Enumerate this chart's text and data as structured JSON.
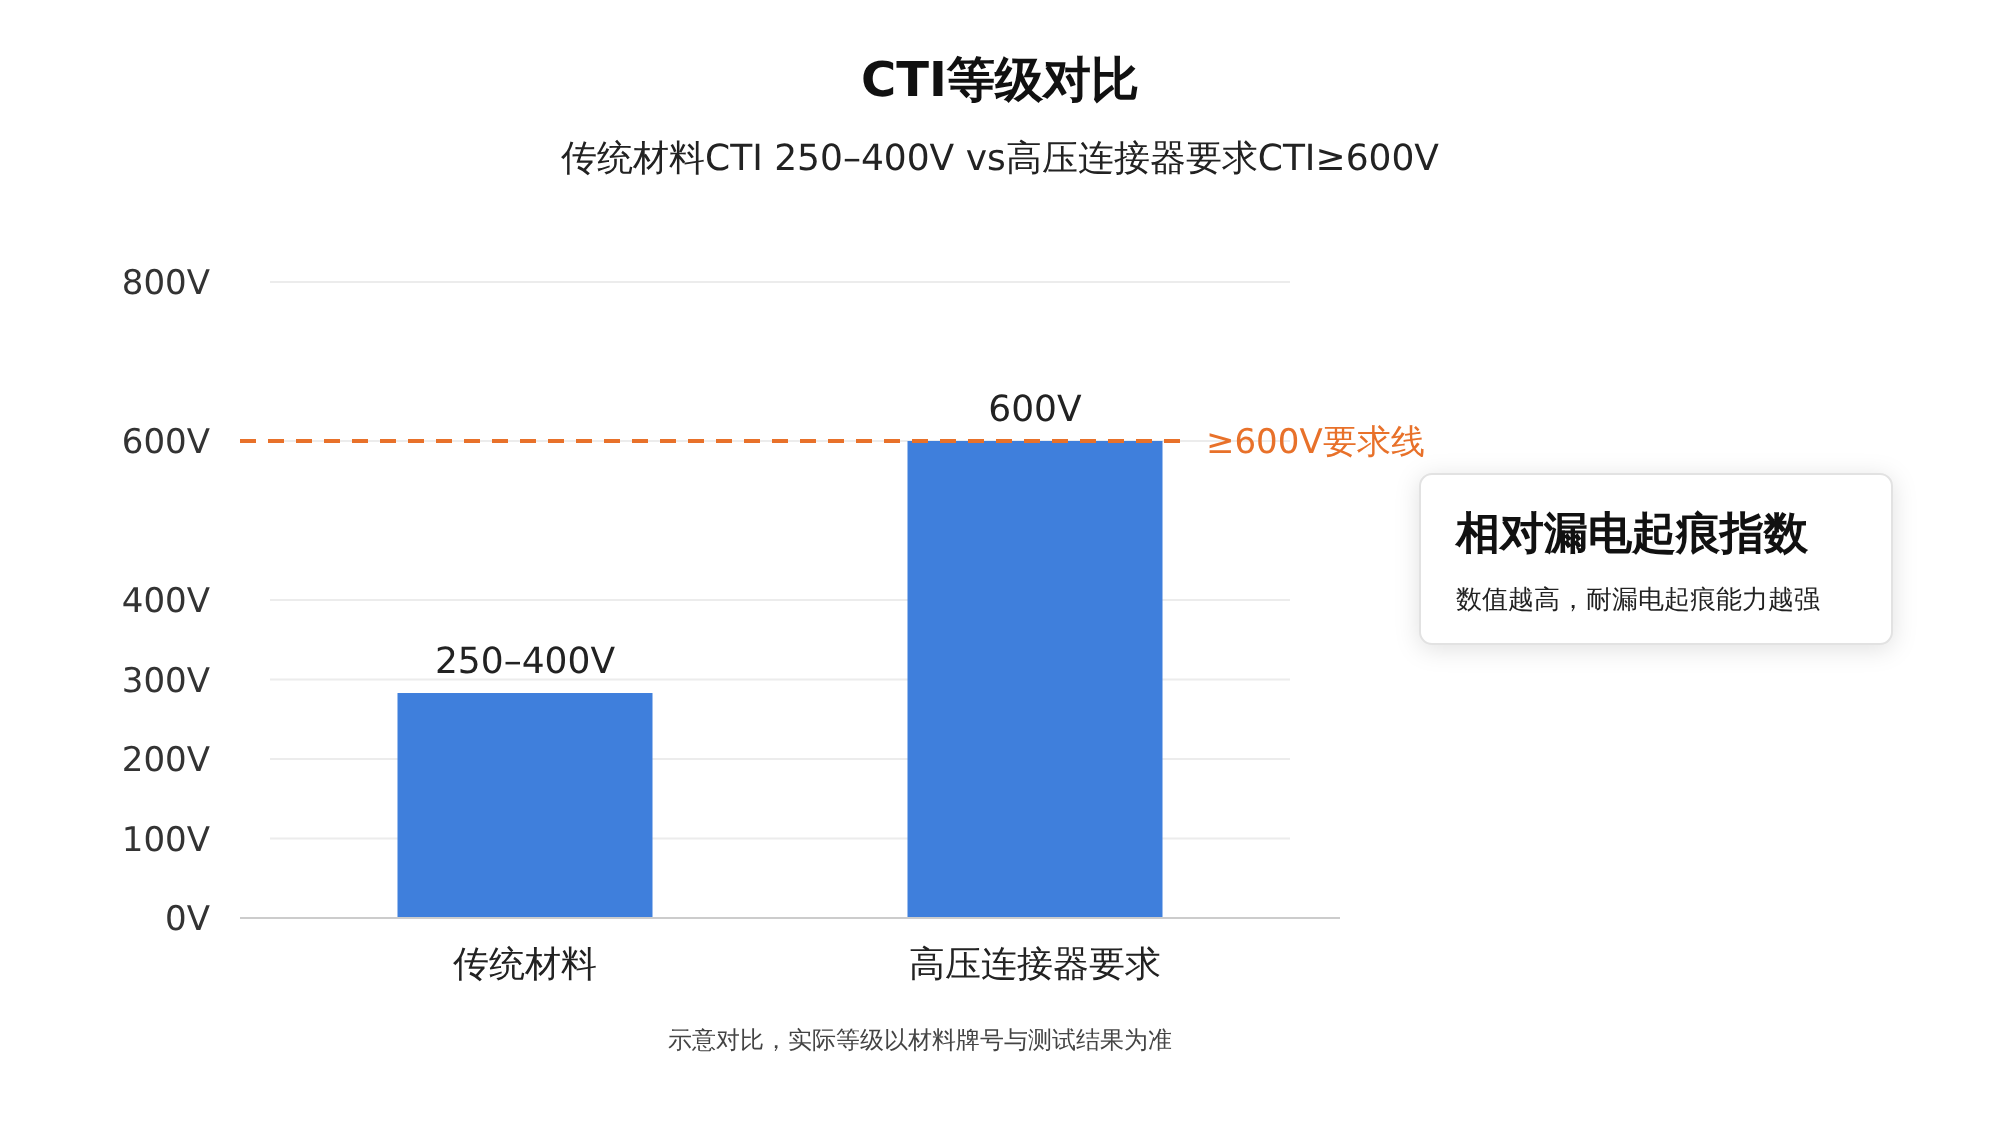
{
  "chart_data": {
    "type": "bar",
    "title": "CTI等级对比",
    "subtitle": "传统材料CTI 250–400V vs高压连接器要求CTI≥600V",
    "categories": [
      "传统材料",
      "高压连接器要求"
    ],
    "values": [
      283,
      600
    ],
    "value_labels": [
      "250–400V",
      "600V"
    ],
    "color": "#3f7fdc",
    "ylim": [
      0,
      800
    ],
    "yticks": [
      {
        "value": 0,
        "label": "0V"
      },
      {
        "value": 100,
        "label": "100V"
      },
      {
        "value": 200,
        "label": "200V"
      },
      {
        "value": 300,
        "label": "300V"
      },
      {
        "value": 400,
        "label": "400V"
      },
      {
        "value": 600,
        "label": "600V"
      },
      {
        "value": 800,
        "label": "800V"
      }
    ],
    "grid": "y",
    "ref_lines": [
      {
        "axis": "y",
        "value": 600,
        "label": "≥600V要求线",
        "color": "#e8712a",
        "line_style": "dashed"
      }
    ],
    "annotations": [
      "相对漏电起痕指数",
      "数值越高，耐漏电起痕能力越强",
      "示意对比，实际等级以材料牌号与测试结果为准"
    ]
  }
}
